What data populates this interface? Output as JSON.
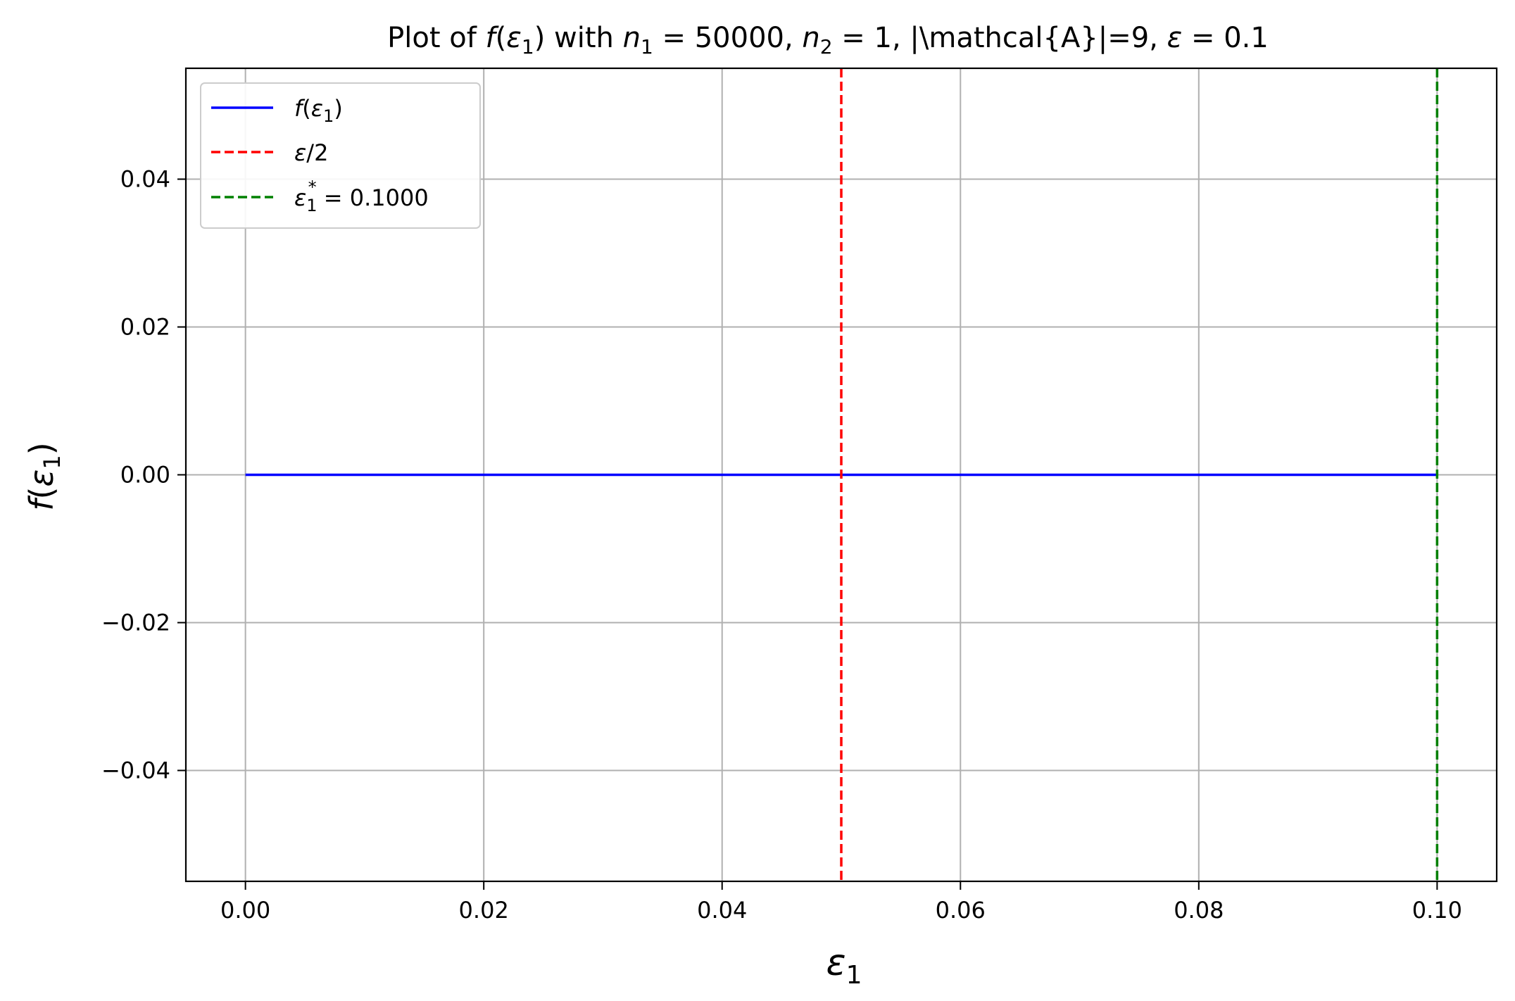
{
  "chart_data": {
    "type": "line",
    "title": {
      "prefix": "Plot of ",
      "f": "f",
      "open": "(",
      "eps": "ε",
      "sub1": "1",
      "close": ")",
      "mid1": " with ",
      "n": "n",
      "n1_tail": " = 50000, ",
      "sub2": "2",
      "n2_tail": " = 1, |\\mathcal{A}|=9, ",
      "eps_tail": " = 0.1"
    },
    "xlabel": {
      "sym": "ε",
      "sub": "1"
    },
    "ylabel": {
      "f": "f",
      "open": "(",
      "sym": "ε",
      "sub": "1",
      "close": ")"
    },
    "xlim": [
      -0.005,
      0.105
    ],
    "ylim": [
      -0.055,
      0.055
    ],
    "grid": true,
    "legend_position": "upper-left",
    "x_ticks": [
      {
        "value": 0.0,
        "label": "0.00"
      },
      {
        "value": 0.02,
        "label": "0.02"
      },
      {
        "value": 0.04,
        "label": "0.04"
      },
      {
        "value": 0.06,
        "label": "0.06"
      },
      {
        "value": 0.08,
        "label": "0.08"
      },
      {
        "value": 0.1,
        "label": "0.10"
      }
    ],
    "y_ticks": [
      {
        "value": 0.04,
        "label": "0.04"
      },
      {
        "value": 0.02,
        "label": "0.02"
      },
      {
        "value": 0.0,
        "label": "0.00"
      },
      {
        "value": -0.02,
        "label": "−0.02"
      },
      {
        "value": -0.04,
        "label": "−0.04"
      }
    ],
    "series": [
      {
        "name": "f(ε1)",
        "legend": {
          "f": "f",
          "open": "(",
          "eps": "ε",
          "sub": "1",
          "close": ")"
        },
        "style": "solid",
        "color": "#0000ff",
        "x": [
          0.0,
          0.1
        ],
        "y": [
          0.0,
          0.0
        ]
      },
      {
        "name": "ε/2",
        "legend": {
          "eps": "ε",
          "tail": "/2"
        },
        "style": "dashed",
        "color": "#ff0000",
        "vline_x": 0.05
      },
      {
        "name": "ε1* = 0.1000",
        "legend": {
          "eps": "ε",
          "sub": "1",
          "sup": "*",
          "tail": " = 0.1000"
        },
        "style": "dashed",
        "color": "#008000",
        "vline_x": 0.1
      }
    ],
    "colors": {
      "grid": "#b0b0b0",
      "axes": "#000000",
      "legend_border": "#cccccc"
    }
  }
}
